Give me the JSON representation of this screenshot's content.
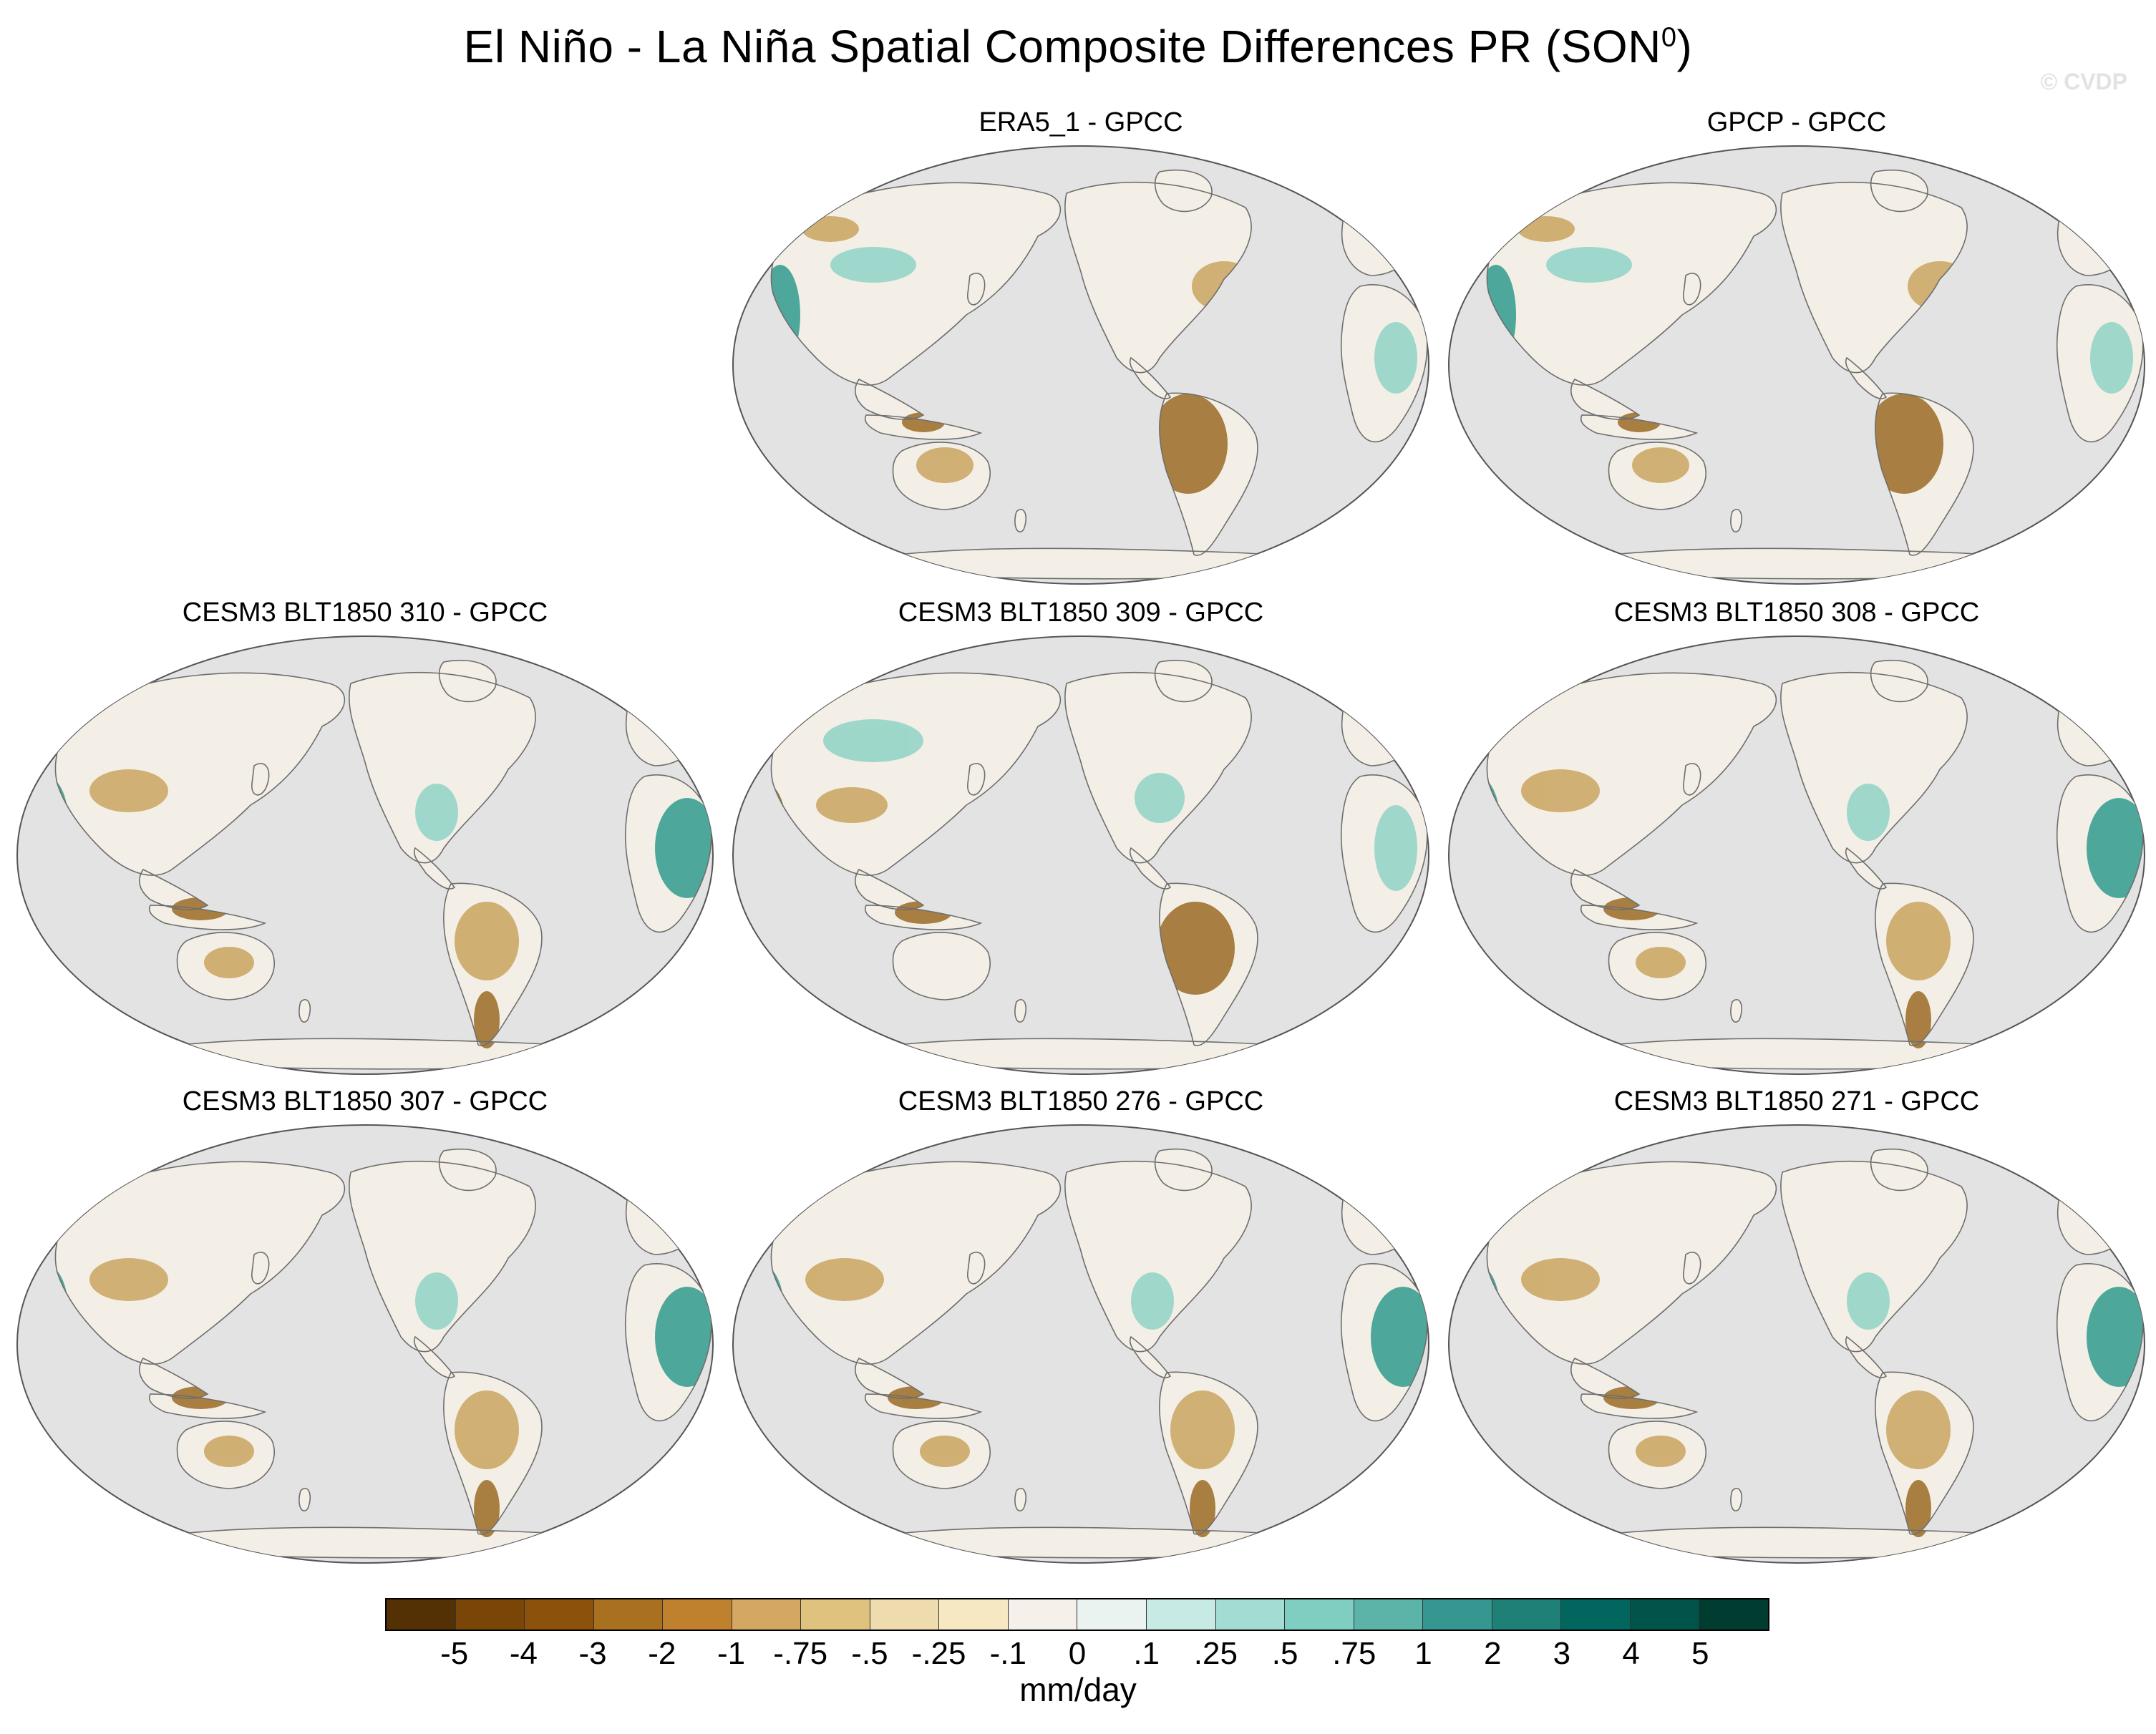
{
  "title": "El Niño - La Niña Spatial Composite Differences PR (SON",
  "title_superscript": "0",
  "title_close": ")",
  "watermark": "© CVDP",
  "panels": [
    {
      "label": "ERA5_1 - GPCC",
      "row": 0,
      "col": 1,
      "style": "wet-west"
    },
    {
      "label": "GPCP - GPCC",
      "row": 0,
      "col": 2,
      "style": "wet-west"
    },
    {
      "label": "CESM3 BLT1850 310 - GPCC",
      "row": 1,
      "col": 0,
      "style": "wet-east"
    },
    {
      "label": "CESM3 BLT1850 309 - GPCC",
      "row": 1,
      "col": 1,
      "style": "dry-east"
    },
    {
      "label": "CESM3 BLT1850 308 - GPCC",
      "row": 1,
      "col": 2,
      "style": "wet-east"
    },
    {
      "label": "CESM3 BLT1850 307 - GPCC",
      "row": 2,
      "col": 0,
      "style": "wet-east"
    },
    {
      "label": "CESM3 BLT1850 276 - GPCC",
      "row": 2,
      "col": 1,
      "style": "wet-east"
    },
    {
      "label": "CESM3 BLT1850 271 - GPCC",
      "row": 2,
      "col": 2,
      "style": "wet-east"
    }
  ],
  "colorbar": {
    "colors": [
      "#543005",
      "#7a4608",
      "#8c510a",
      "#a8701f",
      "#bf812d",
      "#d4a863",
      "#dfc27d",
      "#eedbae",
      "#f6e8c3",
      "#f5f1ea",
      "#eaf3f0",
      "#c7eae5",
      "#a2dcd3",
      "#80cdc1",
      "#5cb4a8",
      "#35978f",
      "#1f8078",
      "#01665e",
      "#015449",
      "#003c30"
    ],
    "tick_labels": [
      "-5",
      "-4",
      "-3",
      "-2",
      "-1",
      "-.75",
      "-.5",
      "-.25",
      "-.1",
      "0",
      ".1",
      ".25",
      ".5",
      ".75",
      "1",
      "2",
      "3",
      "4",
      "5"
    ],
    "units": "mm/day"
  },
  "map_colors": {
    "ocean": "#e3e3e3",
    "coast": "#6e6e6e",
    "land_neutral": "#f3efe6",
    "dry": "#c9a45f",
    "very_dry": "#9a6a24",
    "wet": "#8fd3c6",
    "very_wet": "#2f9a8c"
  }
}
